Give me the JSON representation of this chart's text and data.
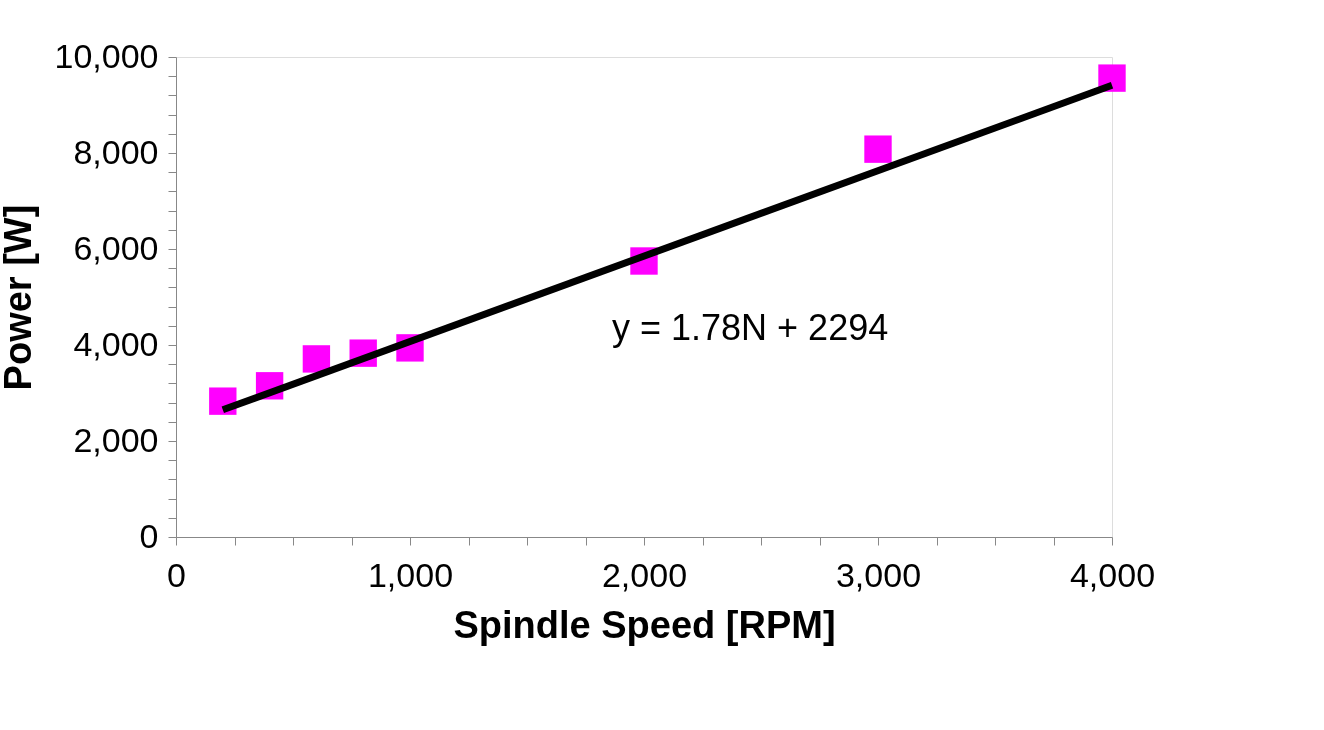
{
  "chart_data": {
    "type": "scatter",
    "xlabel": "Spindle Speed [RPM]",
    "ylabel": "Power [W]",
    "x": [
      200,
      400,
      600,
      800,
      1000,
      2000,
      3000,
      4000
    ],
    "series": [
      {
        "type": "scatter",
        "color": "#ff00ff",
        "marker": "square",
        "values": [
          2830,
          3150,
          3710,
          3830,
          3940,
          5750,
          8080,
          9560
        ]
      },
      {
        "type": "line",
        "color": "#000000",
        "marker": "none",
        "line_style": "solid",
        "x": [
          200,
          4000
        ],
        "values": [
          2650,
          9410
        ]
      }
    ],
    "xlim": [
      0,
      4000
    ],
    "xticks": [
      0,
      {
        "value": 250,
        "label": null
      },
      {
        "value": 500,
        "label": null
      },
      {
        "value": 750,
        "label": null
      },
      {
        "value": 1000,
        "label": "1,000"
      },
      {
        "value": 1250,
        "label": null
      },
      {
        "value": 1500,
        "label": null
      },
      {
        "value": 1750,
        "label": null
      },
      {
        "value": 2000,
        "label": "2,000"
      },
      {
        "value": 2250,
        "label": null
      },
      {
        "value": 2500,
        "label": null
      },
      {
        "value": 2750,
        "label": null
      },
      {
        "value": 3000,
        "label": "3,000"
      },
      {
        "value": 3250,
        "label": null
      },
      {
        "value": 3500,
        "label": null
      },
      {
        "value": 3750,
        "label": null
      },
      {
        "value": 4000,
        "label": "4,000"
      }
    ],
    "ylim": [
      0,
      10000
    ],
    "yticks": [
      0,
      {
        "value": 400,
        "label": null
      },
      {
        "value": 800,
        "label": null
      },
      {
        "value": 1200,
        "label": null
      },
      {
        "value": 1600,
        "label": null
      },
      {
        "value": 2000,
        "label": "2,000"
      },
      {
        "value": 2400,
        "label": null
      },
      {
        "value": 2800,
        "label": null
      },
      {
        "value": 3200,
        "label": null
      },
      {
        "value": 3600,
        "label": null
      },
      {
        "value": 4000,
        "label": "4,000"
      },
      {
        "value": 4400,
        "label": null
      },
      {
        "value": 4800,
        "label": null
      },
      {
        "value": 5200,
        "label": null
      },
      {
        "value": 5600,
        "label": null
      },
      {
        "value": 6000,
        "label": "6,000"
      },
      {
        "value": 6400,
        "label": null
      },
      {
        "value": 6800,
        "label": null
      },
      {
        "value": 7200,
        "label": null
      },
      {
        "value": 7600,
        "label": null
      },
      {
        "value": 8000,
        "label": "8,000"
      },
      {
        "value": 8400,
        "label": null
      },
      {
        "value": 8800,
        "label": null
      },
      {
        "value": 9200,
        "label": null
      },
      {
        "value": 9600,
        "label": null
      },
      {
        "value": 10000,
        "label": "10,000"
      }
    ],
    "annotations": [
      "y = 1.78N + 2294"
    ],
    "grid": false
  }
}
